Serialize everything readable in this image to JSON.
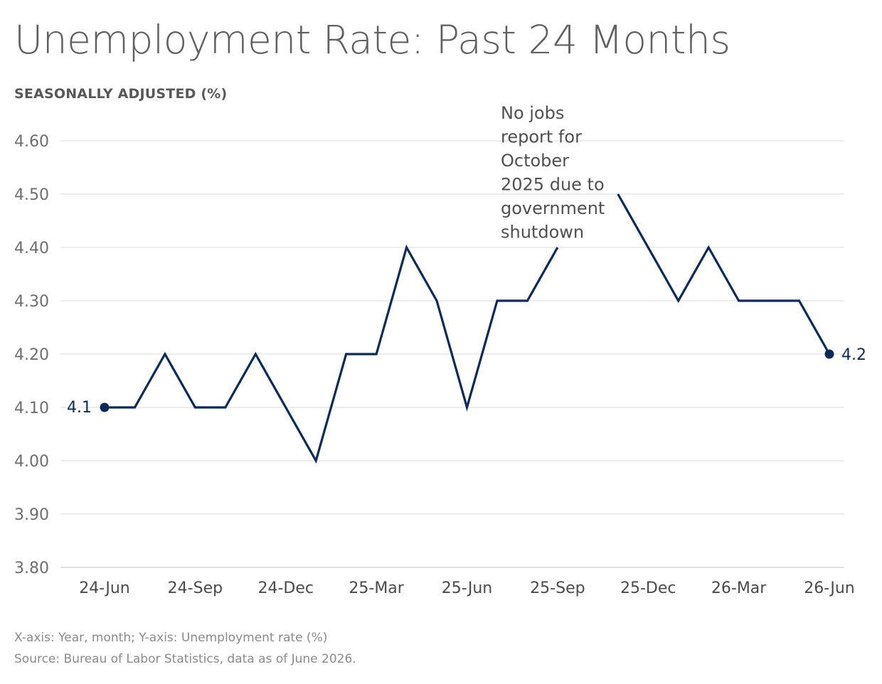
{
  "chart_data": {
    "type": "line",
    "title": "Unemployment Rate: Past 24 Months",
    "subtitle": "SEASONALLY ADJUSTED (%)",
    "xlabel": "",
    "ylabel": "",
    "ylim": [
      3.8,
      4.6
    ],
    "yticks": [
      "4.60",
      "4.50",
      "4.40",
      "4.30",
      "4.20",
      "4.10",
      "4.00",
      "3.90",
      "3.80"
    ],
    "xtick_labels": [
      "24-Jun",
      "24-Sep",
      "24-Dec",
      "25-Mar",
      "25-Jun",
      "25-Sep",
      "25-Dec",
      "26-Mar",
      "26-Jun"
    ],
    "grid": true,
    "line_color": "#0a2b5c",
    "series": [
      {
        "points": [
          {
            "x": "2024-06",
            "y": 4.1
          },
          {
            "x": "2024-07",
            "y": 4.1
          },
          {
            "x": "2024-08",
            "y": 4.2
          },
          {
            "x": "2024-09",
            "y": 4.1
          },
          {
            "x": "2024-10",
            "y": 4.1
          },
          {
            "x": "2024-11",
            "y": 4.2
          },
          {
            "x": "2024-12",
            "y": 4.1
          },
          {
            "x": "2025-01",
            "y": 4.0
          },
          {
            "x": "2025-02",
            "y": 4.2
          },
          {
            "x": "2025-03",
            "y": 4.2
          },
          {
            "x": "2025-04",
            "y": 4.4
          },
          {
            "x": "2025-05",
            "y": 4.3
          },
          {
            "x": "2025-06",
            "y": 4.1
          },
          {
            "x": "2025-07",
            "y": 4.3
          },
          {
            "x": "2025-08",
            "y": 4.3
          },
          {
            "x": "2025-09",
            "y": 4.4
          },
          {
            "x": "2025-10",
            "y": null
          },
          {
            "x": "2025-11",
            "y": 4.5
          },
          {
            "x": "2025-12",
            "y": 4.4
          },
          {
            "x": "2026-01",
            "y": 4.3
          },
          {
            "x": "2026-02",
            "y": 4.4
          },
          {
            "x": "2026-03",
            "y": 4.3
          },
          {
            "x": "2026-04",
            "y": 4.3
          },
          {
            "x": "2026-05",
            "y": 4.3
          },
          {
            "x": "2026-06",
            "y": 4.2
          }
        ]
      }
    ],
    "start_label": "4.1",
    "end_label": "4.2",
    "annotation": {
      "lines": [
        "No jobs",
        "report for",
        "October",
        "2025 due to",
        "government",
        "shutdown"
      ]
    }
  },
  "footer": {
    "axes_note": "X-axis: Year, month; Y-axis: Unemployment rate (%)",
    "source": "Source: Bureau of Labor Statistics, data as of June 2026."
  }
}
